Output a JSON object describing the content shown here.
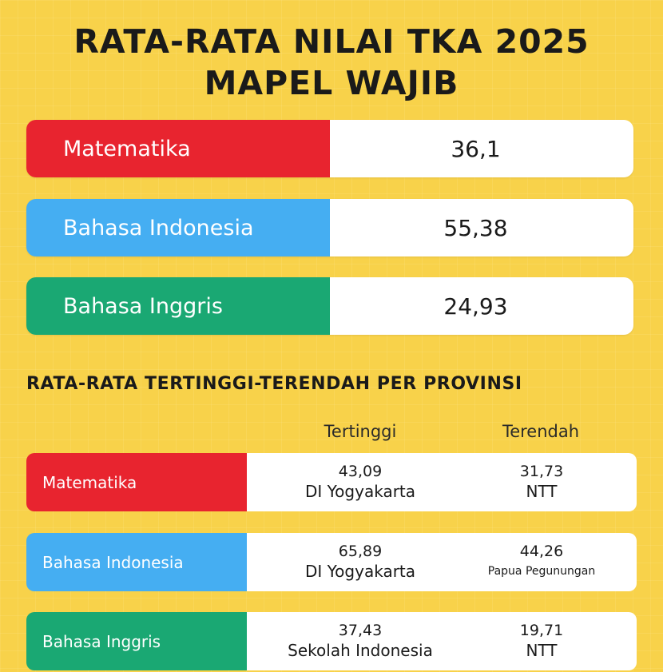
{
  "title": {
    "line1": "RATA-RATA NILAI TKA 2025",
    "line2": "MAPEL WAJIB"
  },
  "colors": {
    "background": "#f8d24a",
    "matematika": "#e8242f",
    "bahasa_indonesia": "#45aef2",
    "bahasa_inggris": "#1aa873"
  },
  "averages": [
    {
      "subject": "Matematika",
      "score": "36,1"
    },
    {
      "subject": "Bahasa Indonesia",
      "score": "55,38"
    },
    {
      "subject": "Bahasa Inggris",
      "score": "24,93"
    }
  ],
  "provinces": {
    "heading": "RATA-RATA TERTINGGI-TERENDAH PER PROVINSI",
    "col_high": "Tertinggi",
    "col_low": "Terendah",
    "rows": [
      {
        "subject": "Matematika",
        "high_score": "43,09",
        "high_place": "DI Yogyakarta",
        "low_score": "31,73",
        "low_place": "NTT"
      },
      {
        "subject": "Bahasa Indonesia",
        "high_score": "65,89",
        "high_place": "DI Yogyakarta",
        "low_score": "44,26",
        "low_place": "Papua Pegunungan"
      },
      {
        "subject": "Bahasa Inggris",
        "high_score": "37,43",
        "high_place": "Sekolah Indonesia",
        "low_score": "19,71",
        "low_place": "NTT"
      }
    ]
  }
}
